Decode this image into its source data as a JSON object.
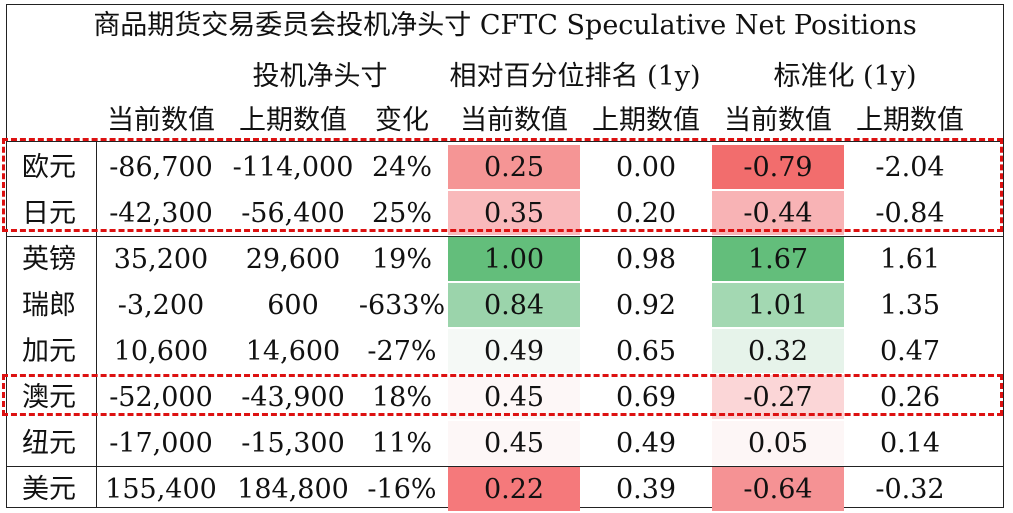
{
  "title": "商品期货交易委员会投机净头寸 CFTC Speculative Net Positions",
  "groups": {
    "net": "投机净头寸",
    "pct": "相对百分位排名 (1y)",
    "std": "标准化 (1y)"
  },
  "columns": [
    "当前数值",
    "上期数值",
    "变化",
    "当前数值",
    "上期数值",
    "当前数值",
    "上期数值"
  ],
  "rows": [
    {
      "name": "欧元",
      "cur": "-86,700",
      "prev": "-114,000",
      "chg": "24%",
      "pct_cur": "0.25",
      "pct_prev": "0.00",
      "std_cur": "-0.79",
      "std_prev": "-2.04",
      "pct_color": "#f59595",
      "std_color": "#f26d6d"
    },
    {
      "name": "日元",
      "cur": "-42,300",
      "prev": "-56,400",
      "chg": "25%",
      "pct_cur": "0.35",
      "pct_prev": "0.20",
      "std_cur": "-0.44",
      "std_prev": "-0.84",
      "pct_color": "#f9b9bb",
      "std_color": "#f8b3b5"
    },
    {
      "name": "英镑",
      "cur": "35,200",
      "prev": "29,600",
      "chg": "19%",
      "pct_cur": "1.00",
      "pct_prev": "0.98",
      "std_cur": "1.67",
      "std_prev": "1.61",
      "pct_color": "#63be7b",
      "std_color": "#63be7b"
    },
    {
      "name": "瑞郎",
      "cur": "-3,200",
      "prev": "600",
      "chg": "-633%",
      "pct_cur": "0.84",
      "pct_prev": "0.92",
      "std_cur": "1.01",
      "std_prev": "1.35",
      "pct_color": "#9bd4ab",
      "std_color": "#a3d8b2"
    },
    {
      "name": "加元",
      "cur": "10,600",
      "prev": "14,600",
      "chg": "-27%",
      "pct_cur": "0.49",
      "pct_prev": "0.65",
      "std_cur": "0.32",
      "std_prev": "0.47",
      "pct_color": "#f5f9f6",
      "std_color": "#e6f3ea"
    },
    {
      "name": "澳元",
      "cur": "-52,000",
      "prev": "-43,900",
      "chg": "18%",
      "pct_cur": "0.45",
      "pct_prev": "0.69",
      "std_cur": "-0.27",
      "std_prev": "0.26",
      "pct_color": "#fdf7f7",
      "std_color": "#fbd6d7"
    },
    {
      "name": "纽元",
      "cur": "-17,000",
      "prev": "-15,300",
      "chg": "11%",
      "pct_cur": "0.45",
      "pct_prev": "0.49",
      "std_cur": "0.05",
      "std_prev": "0.14",
      "pct_color": "#fdf7f7",
      "std_color": "#fdf6f6"
    },
    {
      "name": "美元",
      "cur": "155,400",
      "prev": "184,800",
      "chg": "-16%",
      "pct_cur": "0.22",
      "pct_prev": "0.39",
      "std_cur": "-0.64",
      "std_prev": "-0.32",
      "pct_color": "#f5797b",
      "std_color": "#f59294"
    }
  ]
}
